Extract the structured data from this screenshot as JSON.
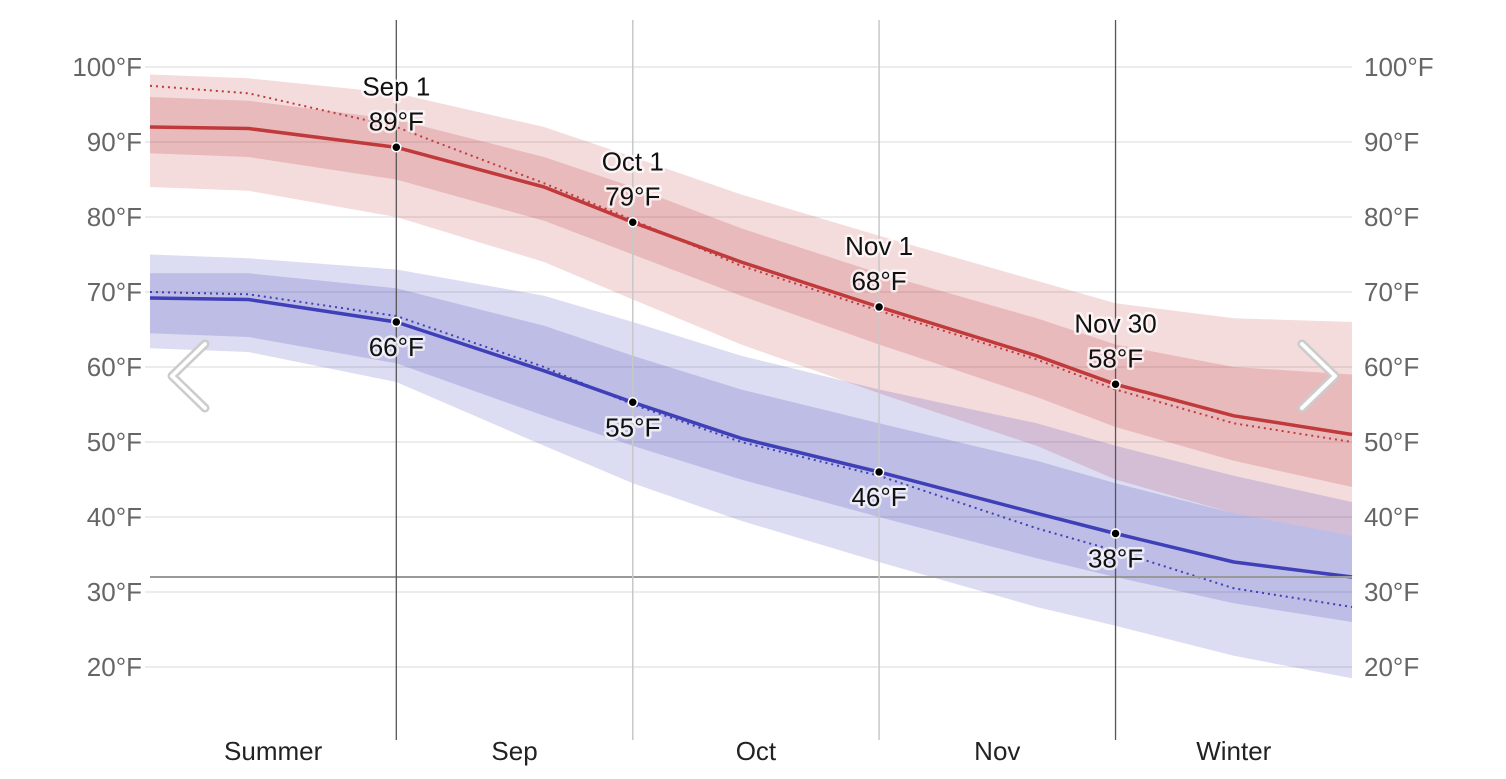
{
  "chart_data": {
    "type": "area",
    "y_ticks": [
      "20°F",
      "30°F",
      "40°F",
      "50°F",
      "60°F",
      "70°F",
      "80°F",
      "90°F",
      "100°F"
    ],
    "ylim": [
      10,
      106
    ],
    "xlim": [
      0,
      122
    ],
    "freezing_line": 32,
    "season_labels": [
      "Summer",
      "Sep",
      "Oct",
      "Nov",
      "Winter"
    ],
    "season_dividers": [
      {
        "day": 25,
        "style": "dark"
      },
      {
        "day": 49,
        "style": "light"
      },
      {
        "day": 74,
        "style": "light"
      },
      {
        "day": 98,
        "style": "dark"
      }
    ],
    "series": [
      {
        "name": "high",
        "color": "#c0393b",
        "x": [
          0,
          10,
          25,
          40,
          49,
          60,
          74,
          90,
          98,
          110,
          122
        ],
        "mean": [
          92,
          91.8,
          89.3,
          84,
          79.3,
          74,
          68,
          61.5,
          57.7,
          53.5,
          51
        ],
        "p25": [
          88.5,
          88,
          85,
          79.5,
          75,
          69.5,
          63,
          56,
          52,
          47.5,
          44
        ],
        "p75": [
          96,
          95.5,
          93,
          88,
          84,
          78.5,
          72.5,
          66.5,
          63,
          60,
          59
        ],
        "p10": [
          84,
          83.5,
          80,
          74,
          69,
          63,
          56.5,
          49.5,
          45,
          40.5,
          37.5
        ],
        "p90": [
          99,
          98.5,
          96.5,
          92,
          88,
          83,
          77.5,
          71.5,
          68.5,
          66.5,
          66
        ],
        "recent": [
          97.5,
          96.5,
          92,
          84.5,
          79.6,
          73.5,
          67.5,
          61,
          57,
          52.5,
          50
        ]
      },
      {
        "name": "low",
        "color": "#3f3fb8",
        "x": [
          0,
          10,
          25,
          40,
          49,
          60,
          74,
          90,
          98,
          110,
          122
        ],
        "mean": [
          69.2,
          69,
          66,
          59.5,
          55.3,
          50.5,
          46,
          40.5,
          37.8,
          34,
          32
        ],
        "p25": [
          64.5,
          64,
          60.5,
          53.5,
          49.5,
          45,
          40,
          34.5,
          32,
          28.5,
          26
        ],
        "p75": [
          72.5,
          72.5,
          70.5,
          65.5,
          61.5,
          57,
          52.5,
          47.5,
          44.5,
          40.5,
          37.5
        ],
        "p10": [
          62.5,
          62,
          58,
          49.5,
          44.5,
          39.5,
          34,
          28,
          25.5,
          21.5,
          18.5
        ],
        "p90": [
          75,
          74.5,
          73,
          69.5,
          66,
          61.5,
          57,
          52.5,
          49.5,
          45.5,
          42
        ],
        "recent": [
          70,
          69.7,
          66.8,
          60,
          55,
          50,
          45.5,
          38.5,
          35.5,
          30.5,
          28
        ]
      }
    ],
    "annotations": [
      {
        "day": 25,
        "date": "Sep 1",
        "high": "89°F",
        "low": "66°F",
        "high_value": 89.3,
        "low_value": 66
      },
      {
        "day": 49,
        "date": "Oct 1",
        "high": "79°F",
        "low": "55°F",
        "high_value": 79.3,
        "low_value": 55.3
      },
      {
        "day": 74,
        "date": "Nov 1",
        "high": "68°F",
        "low": "46°F",
        "high_value": 68,
        "low_value": 46
      },
      {
        "day": 98,
        "date": "Nov 30",
        "high": "58°F",
        "low": "38°F",
        "high_value": 57.7,
        "low_value": 37.8
      }
    ]
  },
  "nav": {
    "prev_icon": "chevron-left-icon",
    "next_icon": "chevron-right-icon"
  }
}
